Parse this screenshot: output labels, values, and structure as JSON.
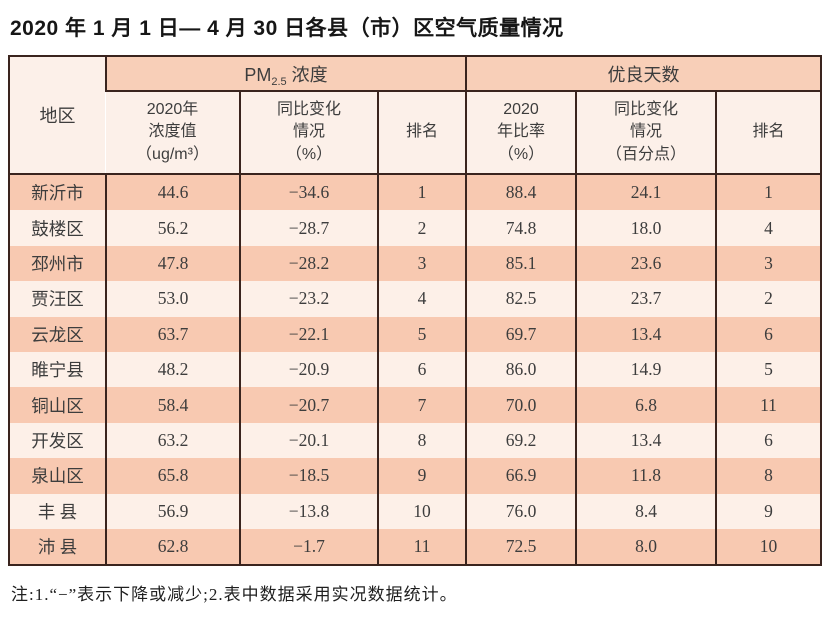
{
  "title": "2020 年 1 月 1 日— 4 月 30 日各县（市）区空气质量情况",
  "table": {
    "region_header": "地区",
    "pm_group": {
      "prefix": "PM",
      "sub": "2.5",
      "suffix": " 浓度"
    },
    "days_group": "优良天数",
    "subheaders": [
      "2020年\n浓度值\n（ug/m³）",
      "同比变化\n情况\n（%）",
      "排名",
      "2020\n年比率\n（%）",
      "同比变化\n情况\n（百分点）",
      "排名"
    ],
    "rows": [
      {
        "region": "新沂市",
        "pm_value": "44.6",
        "pm_change": "−34.6",
        "pm_rank": "1",
        "days_rate": "88.4",
        "days_change": "24.1",
        "days_rank": "1"
      },
      {
        "region": "鼓楼区",
        "pm_value": "56.2",
        "pm_change": "−28.7",
        "pm_rank": "2",
        "days_rate": "74.8",
        "days_change": "18.0",
        "days_rank": "4"
      },
      {
        "region": "邳州市",
        "pm_value": "47.8",
        "pm_change": "−28.2",
        "pm_rank": "3",
        "days_rate": "85.1",
        "days_change": "23.6",
        "days_rank": "3"
      },
      {
        "region": "贾汪区",
        "pm_value": "53.0",
        "pm_change": "−23.2",
        "pm_rank": "4",
        "days_rate": "82.5",
        "days_change": "23.7",
        "days_rank": "2"
      },
      {
        "region": "云龙区",
        "pm_value": "63.7",
        "pm_change": "−22.1",
        "pm_rank": "5",
        "days_rate": "69.7",
        "days_change": "13.4",
        "days_rank": "6"
      },
      {
        "region": "睢宁县",
        "pm_value": "48.2",
        "pm_change": "−20.9",
        "pm_rank": "6",
        "days_rate": "86.0",
        "days_change": "14.9",
        "days_rank": "5"
      },
      {
        "region": "铜山区",
        "pm_value": "58.4",
        "pm_change": "−20.7",
        "pm_rank": "7",
        "days_rate": "70.0",
        "days_change": "6.8",
        "days_rank": "11"
      },
      {
        "region": "开发区",
        "pm_value": "63.2",
        "pm_change": "−20.1",
        "pm_rank": "8",
        "days_rate": "69.2",
        "days_change": "13.4",
        "days_rank": "6"
      },
      {
        "region": "泉山区",
        "pm_value": "65.8",
        "pm_change": "−18.5",
        "pm_rank": "9",
        "days_rate": "66.9",
        "days_change": "11.8",
        "days_rank": "8"
      },
      {
        "region": "丰 县",
        "pm_value": "56.9",
        "pm_change": "−13.8",
        "pm_rank": "10",
        "days_rate": "76.0",
        "days_change": "8.4",
        "days_rank": "9"
      },
      {
        "region": "沛 县",
        "pm_value": "62.8",
        "pm_change": "−1.7",
        "pm_rank": "11",
        "days_rate": "72.5",
        "days_change": "8.0",
        "days_rank": "10"
      }
    ]
  },
  "note": "注:1.“−”表示下降或减少;2.表中数据采用实况数据统计。",
  "colors": {
    "row_salmon": "#f8c9b1",
    "row_light": "#fdf0e8",
    "header_band": "#f8cfb8",
    "subheader_bg": "#fcf0e9",
    "border": "#3a241e",
    "text": "#3d3d3d"
  }
}
